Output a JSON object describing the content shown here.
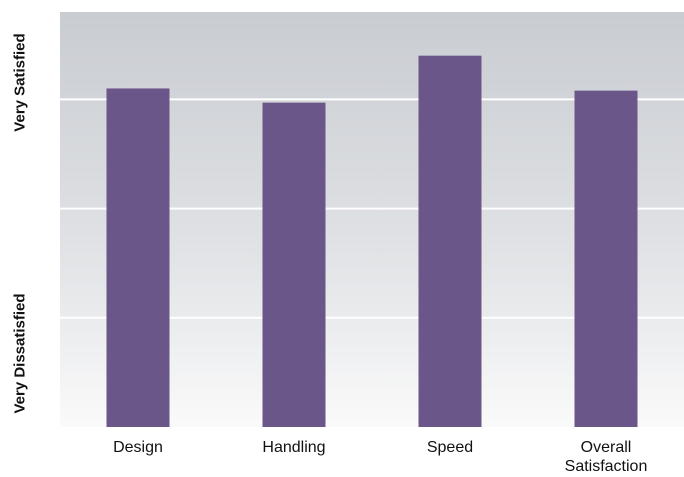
{
  "chart_data": {
    "type": "bar",
    "categories": [
      "Design",
      "Handling",
      "Speed",
      "Overall\nSatisfaction"
    ],
    "values": [
      3.1,
      2.97,
      3.4,
      3.08
    ],
    "ylim": [
      0,
      3.8
    ],
    "grid": true,
    "ylabel_top": "Very Satisfied",
    "ylabel_bottom": "Very Dissatisfied",
    "colors": {
      "bar": "#6a5689",
      "plot_background_top": "#c9ccd1",
      "plot_background_bottom": "#fafafa",
      "gridline": "#ffffff"
    }
  }
}
